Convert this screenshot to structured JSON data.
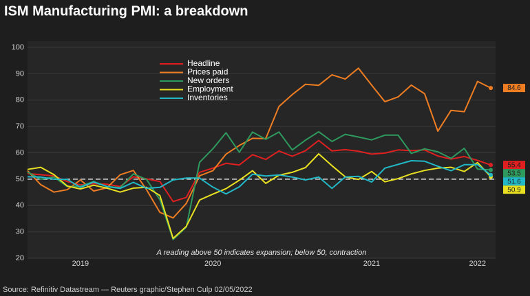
{
  "chart_data": {
    "type": "line",
    "title": "ISM Manufacturing PMI: a breakdown",
    "annotation": "A reading above 50 indicates expansion; below 50, contraction",
    "source": "Source: Refinitiv Datastream — Reuters graphic/Stephen Culp 02/05/2022",
    "categories": [
      null,
      null,
      null,
      null,
      "2019",
      null,
      null,
      null,
      null,
      null,
      null,
      null,
      null,
      null,
      "2020",
      null,
      null,
      null,
      null,
      null,
      null,
      null,
      null,
      null,
      null,
      null,
      "2021",
      null,
      null,
      null,
      null,
      null,
      null,
      null,
      "2022",
      null
    ],
    "ylim": [
      20,
      100
    ],
    "yticks": [
      20,
      30,
      40,
      50,
      60,
      70,
      80,
      90,
      100
    ],
    "reference_line": 50,
    "grid": true,
    "series": [
      {
        "name": "Headline",
        "color": "#e02020",
        "values": [
          52.1,
          51.7,
          51.2,
          49.1,
          47.8,
          48.3,
          48.1,
          47.2,
          50.9,
          50.1,
          49.1,
          41.5,
          43.1,
          52.6,
          54.2,
          56.0,
          55.4,
          59.3,
          57.5,
          60.7,
          58.7,
          60.8,
          64.7,
          60.7,
          61.2,
          60.6,
          59.5,
          59.9,
          61.1,
          60.8,
          61.1,
          58.8,
          57.6,
          58.6,
          57.1,
          55.4
        ]
      },
      {
        "name": "Prices paid",
        "color": "#ef7d22",
        "values": [
          53.2,
          47.9,
          45.1,
          46.0,
          49.7,
          45.5,
          46.7,
          51.7,
          53.3,
          45.9,
          37.4,
          35.3,
          40.8,
          51.3,
          53.2,
          59.5,
          62.8,
          65.5,
          65.4,
          77.6,
          82.1,
          86.0,
          85.6,
          89.6,
          88.0,
          92.1,
          85.7,
          79.4,
          81.2,
          85.7,
          82.4,
          68.2,
          76.1,
          75.6,
          87.1,
          84.6
        ]
      },
      {
        "name": "New orders",
        "color": "#2e9a5e",
        "values": [
          52.7,
          50.0,
          50.8,
          47.2,
          47.3,
          49.1,
          47.2,
          46.8,
          52.0,
          49.8,
          42.2,
          27.1,
          31.8,
          56.4,
          61.5,
          67.6,
          60.2,
          67.9,
          65.1,
          67.9,
          61.1,
          64.8,
          68.0,
          64.3,
          67.0,
          66.0,
          64.9,
          66.7,
          66.7,
          59.8,
          61.5,
          60.4,
          57.9,
          61.7,
          53.8,
          53.5
        ]
      },
      {
        "name": "Employment",
        "color": "#e8e020",
        "values": [
          53.7,
          54.5,
          51.7,
          47.4,
          46.3,
          47.7,
          46.6,
          45.1,
          46.6,
          46.9,
          43.8,
          27.5,
          32.1,
          42.1,
          44.3,
          46.4,
          49.6,
          53.2,
          48.4,
          51.5,
          52.6,
          54.4,
          59.6,
          55.1,
          50.9,
          49.9,
          52.9,
          49.0,
          50.2,
          52.0,
          53.3,
          54.2,
          54.5,
          52.9,
          56.3,
          50.9
        ]
      },
      {
        "name": "Inventories",
        "color": "#22b8c8",
        "values": [
          50.9,
          50.8,
          50.0,
          49.9,
          46.9,
          48.9,
          47.2,
          46.5,
          48.8,
          46.5,
          46.9,
          49.7,
          50.4,
          50.4,
          47.0,
          44.4,
          47.1,
          51.9,
          51.2,
          51.6,
          50.8,
          49.7,
          50.8,
          46.5,
          50.8,
          51.1,
          48.9,
          54.2,
          55.6,
          57.0,
          56.8,
          54.9,
          53.2,
          55.5,
          55.5,
          51.6
        ]
      }
    ]
  }
}
